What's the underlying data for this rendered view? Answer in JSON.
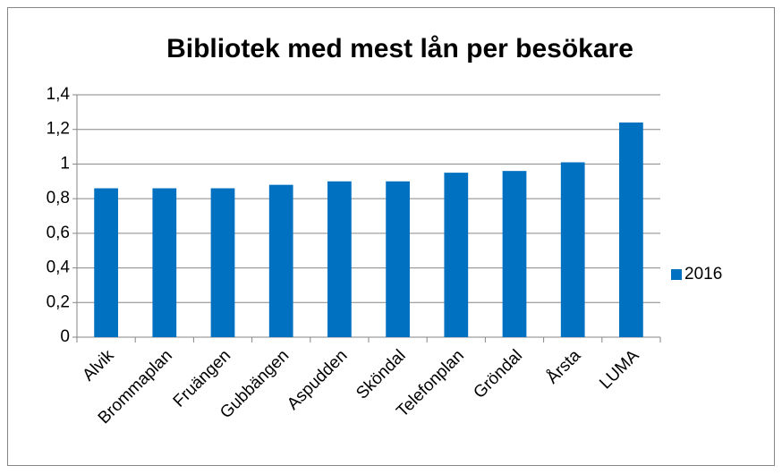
{
  "chart_data": {
    "type": "bar",
    "title": "Bibliotek med mest lån per besökare",
    "categories": [
      "Alvik",
      "Brommaplan",
      "Fruängen",
      "Gubbängen",
      "Aspudden",
      "Sköndal",
      "Telefonplan",
      "Gröndal",
      "Årsta",
      "LUMA"
    ],
    "series": [
      {
        "name": "2016",
        "color": "#0070c0",
        "values": [
          0.86,
          0.86,
          0.86,
          0.88,
          0.9,
          0.9,
          0.95,
          0.96,
          1.01,
          1.24
        ]
      }
    ],
    "ylim": [
      0,
      1.4
    ],
    "yticks": [
      0,
      {
        "value": 0.2,
        "label": "0,2"
      },
      {
        "value": 0.4,
        "label": "0,4"
      },
      {
        "value": 0.6,
        "label": "0,6"
      },
      {
        "value": 0.8,
        "label": "0,8"
      },
      1,
      {
        "value": 1.2,
        "label": "1,2"
      },
      {
        "value": 1.4,
        "label": "1,4"
      }
    ],
    "grid": true,
    "legend": "right"
  }
}
